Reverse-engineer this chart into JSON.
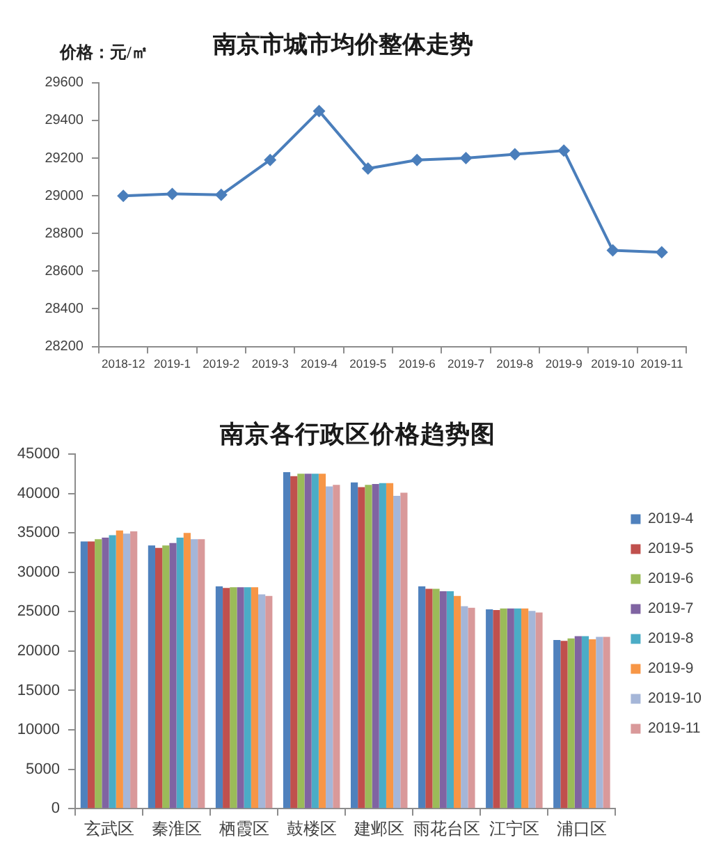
{
  "chart_data": [
    {
      "type": "line",
      "title": "南京市城市均价整体走势",
      "ylabel": "价格：元/㎡",
      "categories": [
        "2018-12",
        "2019-1",
        "2019-2",
        "2019-3",
        "2019-4",
        "2019-5",
        "2019-6",
        "2019-7",
        "2019-8",
        "2019-9",
        "2019-10",
        "2019-11"
      ],
      "series": [
        {
          "color": "#4a7ebb",
          "values": [
            29000,
            29010,
            29005,
            29190,
            29450,
            29145,
            29190,
            29200,
            29220,
            29240,
            28710,
            28700
          ]
        }
      ],
      "ylim": [
        28200,
        29600
      ],
      "yticks": [
        28200,
        28400,
        28600,
        28800,
        29000,
        29200,
        29400,
        29600
      ],
      "marker": "diamond",
      "grid": false
    },
    {
      "type": "bar",
      "title": "南京各行政区价格趋势图",
      "categories": [
        "玄武区",
        "秦淮区",
        "栖霞区",
        "鼓楼区",
        "建邺区",
        "雨花台区",
        "江宁区",
        "浦口区"
      ],
      "series": [
        {
          "name": "2019-4",
          "color": "#4f81bd",
          "values": [
            33900,
            33400,
            28200,
            42700,
            41400,
            28200,
            25300,
            21400
          ]
        },
        {
          "name": "2019-5",
          "color": "#c0504d",
          "values": [
            33900,
            33100,
            28000,
            42200,
            40800,
            27900,
            25200,
            21300
          ]
        },
        {
          "name": "2019-6",
          "color": "#9bbb59",
          "values": [
            34200,
            33400,
            28100,
            42500,
            41100,
            27900,
            25400,
            21600
          ]
        },
        {
          "name": "2019-7",
          "color": "#8064a2",
          "values": [
            34400,
            33700,
            28100,
            42500,
            41200,
            27600,
            25400,
            21900
          ]
        },
        {
          "name": "2019-8",
          "color": "#4bacc6",
          "values": [
            34700,
            34400,
            28100,
            42500,
            41300,
            27600,
            25400,
            21900
          ]
        },
        {
          "name": "2019-9",
          "color": "#f79646",
          "values": [
            35300,
            35000,
            28100,
            42500,
            41300,
            27000,
            25400,
            21500
          ]
        },
        {
          "name": "2019-10",
          "color": "#a5b6d8",
          "values": [
            34900,
            34200,
            27200,
            40900,
            39700,
            25700,
            25100,
            21800
          ]
        },
        {
          "name": "2019-11",
          "color": "#d9999a",
          "values": [
            35200,
            34200,
            27000,
            41100,
            40100,
            25500,
            24900,
            21800
          ]
        }
      ],
      "ylim": [
        0,
        45000
      ],
      "yticks": [
        0,
        5000,
        10000,
        15000,
        20000,
        25000,
        30000,
        35000,
        40000,
        45000
      ],
      "grid": false,
      "legend": "right"
    }
  ]
}
